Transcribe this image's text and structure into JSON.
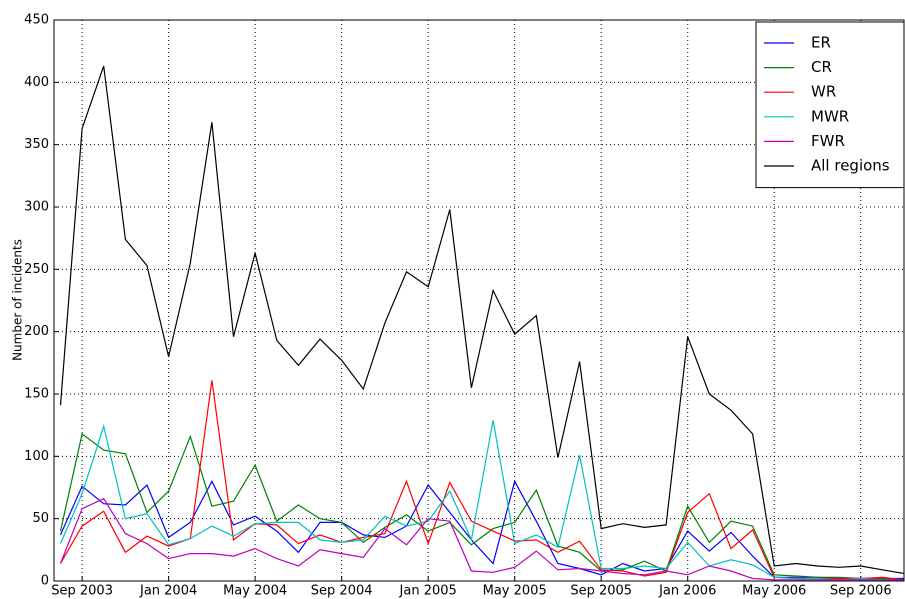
{
  "chart_data": {
    "type": "line",
    "ylabel": "Number of incidents",
    "categories": [
      null,
      "Sep 2003",
      null,
      null,
      null,
      "Jan 2004",
      null,
      null,
      null,
      "May 2004",
      null,
      null,
      null,
      "Sep 2004",
      null,
      null,
      null,
      "Jan 2005",
      null,
      null,
      null,
      "May 2005",
      null,
      null,
      null,
      "Sep 2005",
      null,
      null,
      null,
      "Jan 2006",
      null,
      null,
      null,
      "May 2006",
      null,
      null,
      null,
      "Sep 2006",
      null,
      null
    ],
    "series": [
      {
        "name": "ER",
        "color": "#0000ff",
        "values": [
          37,
          76,
          62,
          61,
          77,
          35,
          47,
          80,
          45,
          52,
          40,
          23,
          47,
          47,
          37,
          35,
          44,
          77,
          55,
          33,
          14,
          80,
          48,
          14,
          10,
          5,
          14,
          8,
          10,
          40,
          24,
          39,
          20,
          3,
          3,
          3,
          2,
          2,
          2,
          2
        ]
      },
      {
        "name": "CR",
        "color": "#008000",
        "values": [
          40,
          118,
          105,
          102,
          55,
          72,
          116,
          60,
          64,
          93,
          48,
          61,
          50,
          47,
          31,
          43,
          53,
          40,
          47,
          29,
          42,
          47,
          73,
          28,
          23,
          8,
          9,
          16,
          8,
          60,
          31,
          48,
          44,
          5,
          4,
          3,
          3,
          2,
          2,
          1
        ]
      },
      {
        "name": "WR",
        "color": "#ff0000",
        "values": [
          14,
          44,
          56,
          23,
          36,
          28,
          34,
          161,
          33,
          46,
          45,
          30,
          37,
          31,
          35,
          38,
          80,
          30,
          79,
          48,
          40,
          32,
          33,
          23,
          32,
          9,
          8,
          4,
          7,
          55,
          70,
          26,
          41,
          3,
          2,
          2,
          2,
          2,
          3,
          1
        ]
      },
      {
        "name": "MWR",
        "color": "#00bfbf",
        "values": [
          30,
          70,
          124,
          50,
          54,
          29,
          34,
          44,
          36,
          46,
          47,
          47,
          33,
          31,
          33,
          52,
          44,
          48,
          72,
          33,
          129,
          30,
          37,
          27,
          101,
          10,
          10,
          12,
          10,
          31,
          12,
          17,
          13,
          3,
          2,
          2,
          1,
          2,
          1,
          1
        ]
      },
      {
        "name": "FWR",
        "color": "#bf00bf",
        "values": [
          14,
          58,
          66,
          38,
          30,
          18,
          22,
          22,
          20,
          26,
          18,
          12,
          25,
          22,
          19,
          42,
          29,
          50,
          48,
          8,
          7,
          11,
          24,
          9,
          10,
          8,
          6,
          5,
          8,
          5,
          12,
          8,
          2,
          1,
          1,
          1,
          1,
          1,
          1,
          1
        ]
      },
      {
        "name": "All regions",
        "color": "#000000",
        "values": [
          141,
          363,
          413,
          274,
          253,
          180,
          255,
          368,
          196,
          263,
          193,
          173,
          194,
          177,
          154,
          207,
          248,
          236,
          298,
          155,
          233,
          198,
          213,
          99,
          176,
          42,
          46,
          43,
          45,
          196,
          150,
          137,
          118,
          12,
          14,
          12,
          11,
          12,
          9,
          6
        ]
      }
    ],
    "ylim": [
      0,
      450
    ],
    "yticks": [
      0,
      50,
      100,
      150,
      200,
      250,
      300,
      350,
      400,
      450
    ],
    "grid": true,
    "legend": "upper right"
  }
}
